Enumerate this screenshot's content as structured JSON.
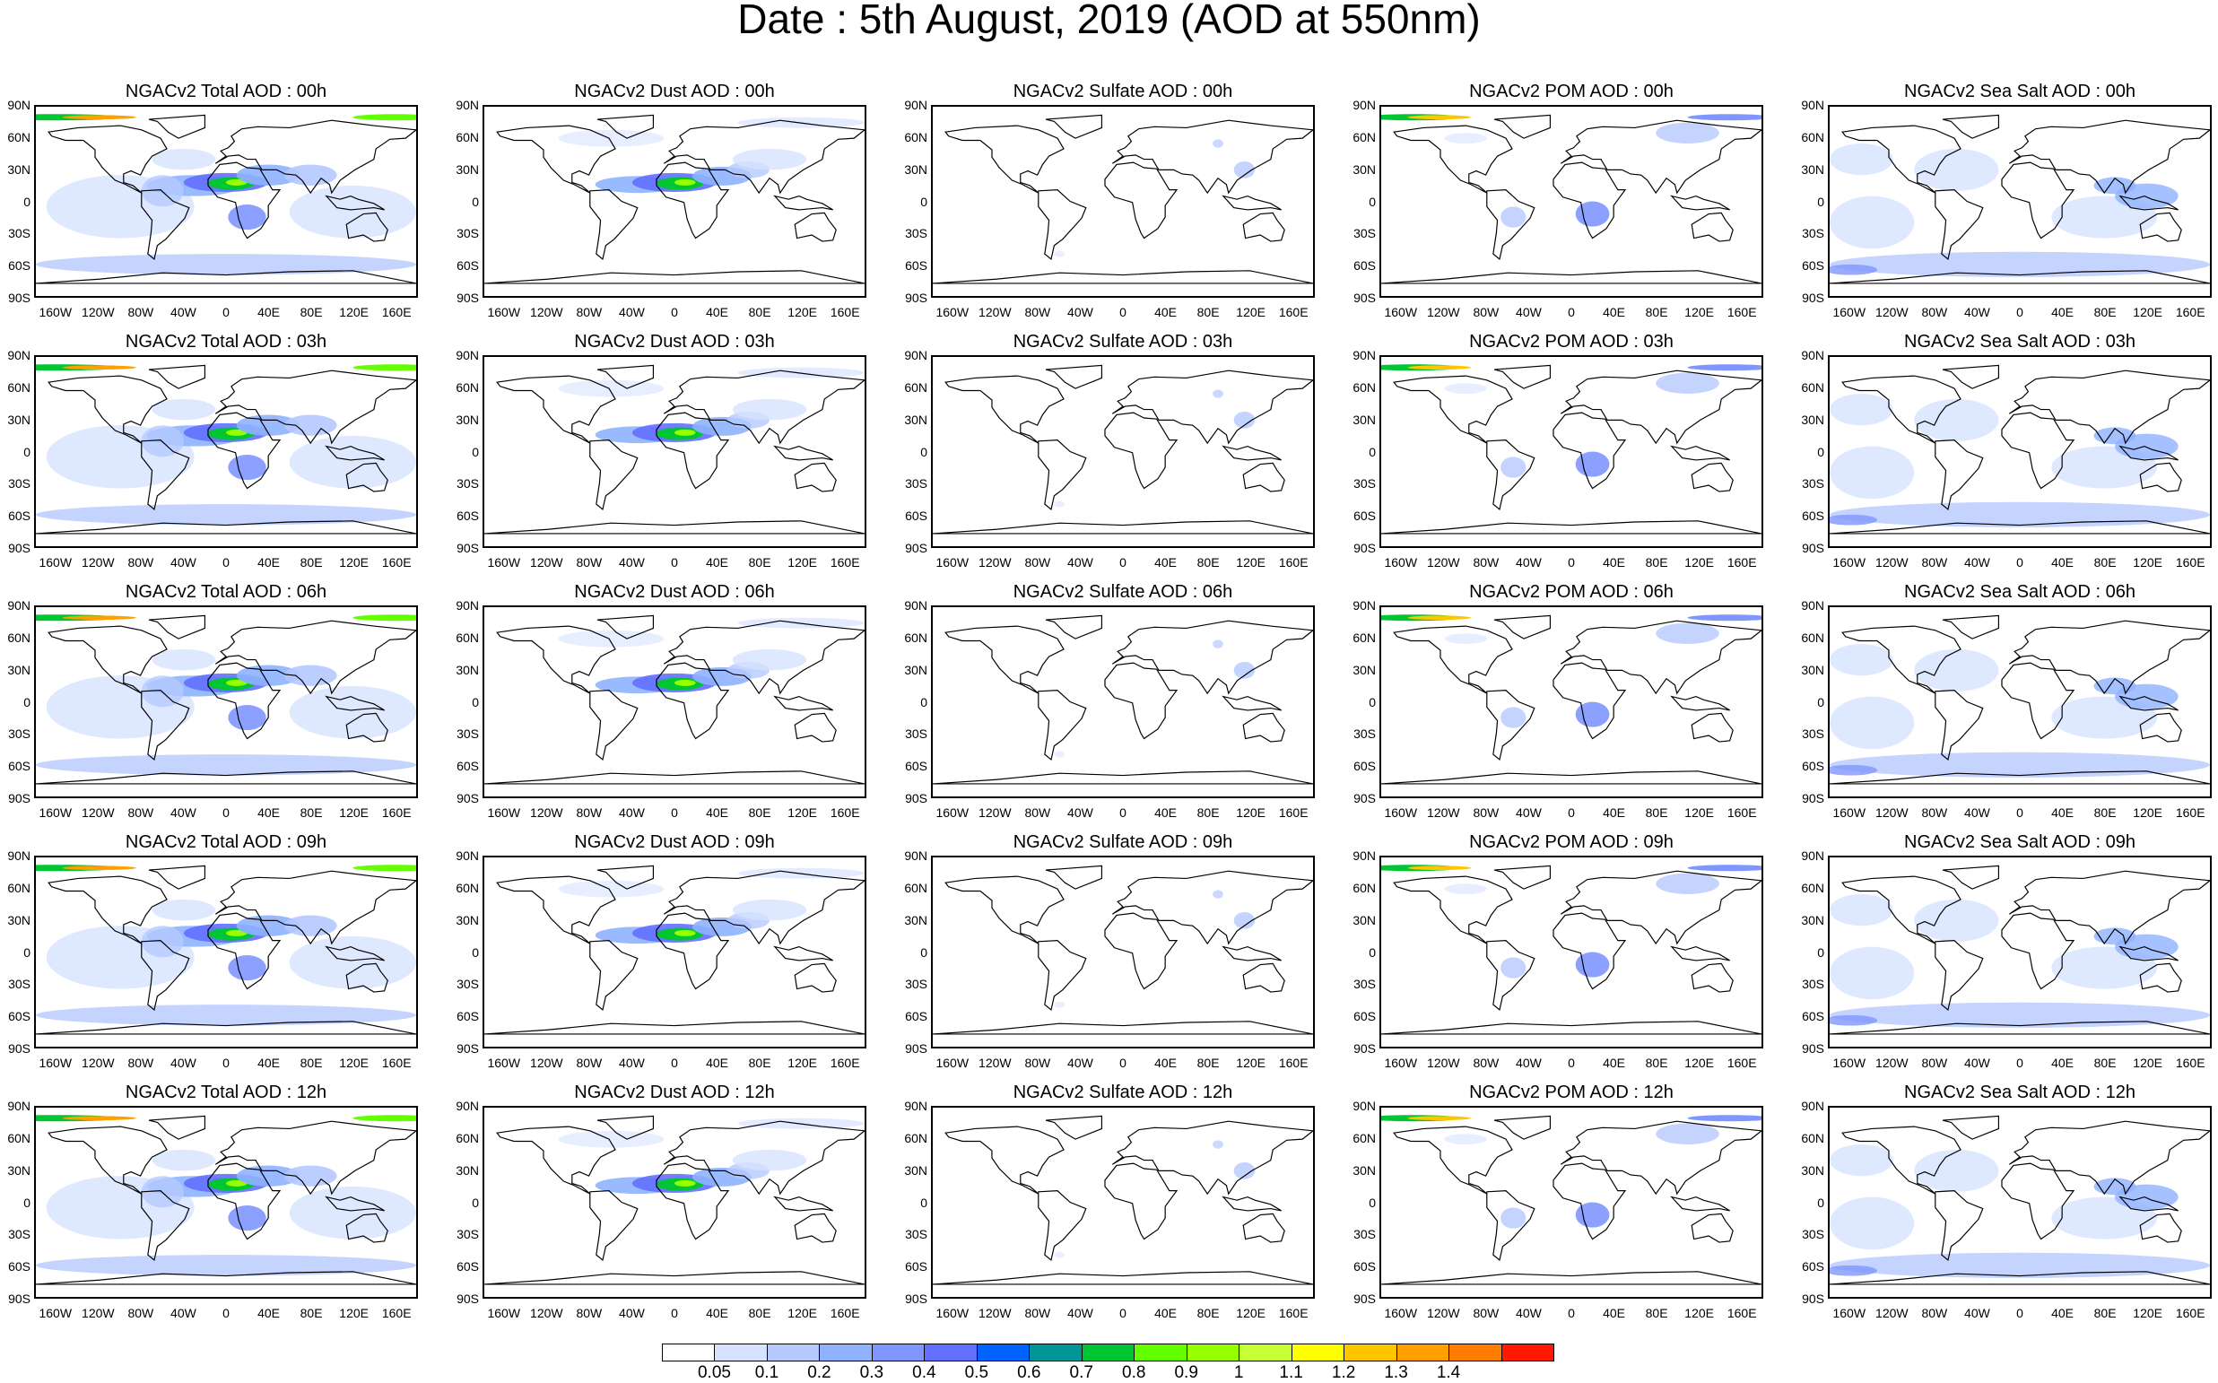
{
  "title": "Date : 5th August, 2019 (AOD at 550nm)",
  "lat_ticks": [
    "90N",
    "60N",
    "30N",
    "0",
    "30S",
    "60S",
    "90S"
  ],
  "lon_ticks": [
    "160W",
    "120W",
    "80W",
    "40W",
    "0",
    "40E",
    "80E",
    "120E",
    "160E"
  ],
  "panels": [
    {
      "title": "NGACv2 Total AOD : 00h",
      "type": "total"
    },
    {
      "title": "NGACv2 Dust AOD : 00h",
      "type": "dust"
    },
    {
      "title": "NGACv2 Sulfate AOD : 00h",
      "type": "sulfate"
    },
    {
      "title": "NGACv2 POM AOD : 00h",
      "type": "pom"
    },
    {
      "title": "NGACv2 Sea Salt AOD : 00h",
      "type": "seasalt"
    },
    {
      "title": "NGACv2 Total AOD : 03h",
      "type": "total"
    },
    {
      "title": "NGACv2 Dust AOD : 03h",
      "type": "dust"
    },
    {
      "title": "NGACv2 Sulfate AOD : 03h",
      "type": "sulfate"
    },
    {
      "title": "NGACv2 POM AOD : 03h",
      "type": "pom"
    },
    {
      "title": "NGACv2 Sea Salt AOD : 03h",
      "type": "seasalt"
    },
    {
      "title": "NGACv2 Total AOD : 06h",
      "type": "total"
    },
    {
      "title": "NGACv2 Dust AOD : 06h",
      "type": "dust"
    },
    {
      "title": "NGACv2 Sulfate AOD : 06h",
      "type": "sulfate"
    },
    {
      "title": "NGACv2 POM AOD : 06h",
      "type": "pom"
    },
    {
      "title": "NGACv2 Sea Salt AOD : 06h",
      "type": "seasalt"
    },
    {
      "title": "NGACv2 Total AOD : 09h",
      "type": "total"
    },
    {
      "title": "NGACv2 Dust AOD : 09h",
      "type": "dust"
    },
    {
      "title": "NGACv2 Sulfate AOD : 09h",
      "type": "sulfate"
    },
    {
      "title": "NGACv2 POM AOD : 09h",
      "type": "pom"
    },
    {
      "title": "NGACv2 Sea Salt  AOD : 09h",
      "type": "seasalt"
    },
    {
      "title": "NGACv2 Total AOD  : 12h",
      "type": "total"
    },
    {
      "title": "NGACv2 Dust AOD : 12h",
      "type": "dust"
    },
    {
      "title": "NGACv2 Sulfate AOD : 12h",
      "type": "sulfate"
    },
    {
      "title": "NGACv2 POM  AOD : 12h",
      "type": "pom"
    },
    {
      "title": "NGACv2 Sea Salt  AOD : 12h",
      "type": "seasalt"
    }
  ],
  "colorbar": {
    "labels": [
      "0.05",
      "0.1",
      "0.2",
      "0.3",
      "0.4",
      "0.5",
      "0.6",
      "0.7",
      "0.8",
      "0.9",
      "1",
      "1.1",
      "1.2",
      "1.3",
      "1.4"
    ],
    "colors": [
      "#ffffff",
      "#d6e2ff",
      "#b5c9ff",
      "#8eb2ff",
      "#7f96ff",
      "#6370ff",
      "#0063ff",
      "#009696",
      "#00c633",
      "#63ff00",
      "#96ff00",
      "#c6ff33",
      "#ffff00",
      "#ffc600",
      "#ffa000",
      "#ff7c00",
      "#ff1900"
    ]
  }
}
